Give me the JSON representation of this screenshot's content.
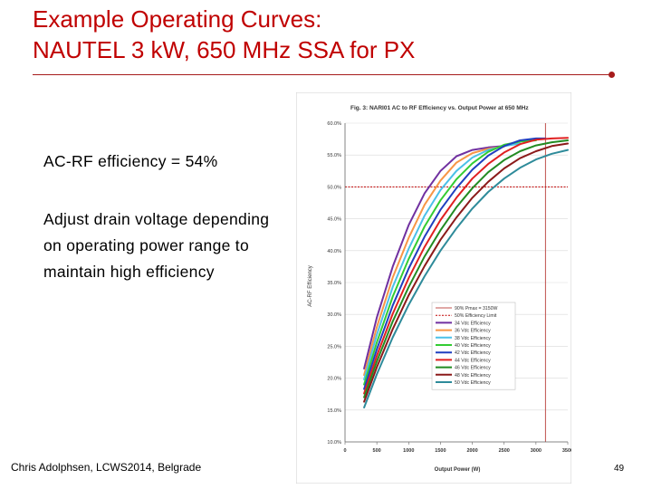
{
  "slide": {
    "title_line1": "Example Operating Curves:",
    "title_line2": "NAUTEL 3 kW, 650 MHz SSA for PX",
    "bullet1": "AC-RF efficiency = 54%",
    "bullet2": "Adjust drain voltage depending on operating power range to maintain high efficiency",
    "footer": "Chris Adolphsen, LCWS2014, Belgrade",
    "page_number": "49"
  },
  "chart_data": {
    "type": "line",
    "title": "Fig. 3: NARI01 AC to RF Efficiency vs. Output Power at 650 MHz",
    "xlabel": "Output Power (W)",
    "ylabel": "AC-RF Efficiency",
    "xlim": [
      0,
      3500
    ],
    "ylim": [
      10,
      60
    ],
    "x_ticks": [
      "0",
      "500",
      "1000",
      "1500",
      "2000",
      "2500",
      "3000",
      "3500"
    ],
    "y_ticks": [
      "10.0%",
      "15.0%",
      "20.0%",
      "25.0%",
      "30.0%",
      "35.0%",
      "40.0%",
      "45.0%",
      "50.0%",
      "55.0%",
      "60.0%"
    ],
    "legend_position": "bottom-right",
    "reference_lines": [
      {
        "name": "90% Pmax = 3150W",
        "orientation": "vertical",
        "value": 3150,
        "color": "#c0504d"
      },
      {
        "name": "50% Efficiency Limit",
        "orientation": "horizontal",
        "value": 50,
        "color": "#c00000"
      }
    ],
    "series": [
      {
        "name": "34 Vdc Efficiency",
        "color": "#7030a0",
        "x": [
          300,
          500,
          750,
          1000,
          1250,
          1500,
          1750,
          2000,
          2250,
          2500
        ],
        "y": [
          21.5,
          29.5,
          37.5,
          44,
          49,
          52.5,
          54.8,
          55.8,
          56.2,
          56.4
        ]
      },
      {
        "name": "36 Vdc Efficiency",
        "color": "#f79646",
        "x": [
          300,
          500,
          750,
          1000,
          1250,
          1500,
          1750,
          2000,
          2250,
          2500
        ],
        "y": [
          20.5,
          28,
          35.8,
          42,
          47.2,
          51,
          53.8,
          55.3,
          56,
          56.3
        ]
      },
      {
        "name": "38 Vdc Efficiency",
        "color": "#4bc0e8",
        "x": [
          300,
          500,
          750,
          1000,
          1250,
          1500,
          1750,
          2000,
          2250,
          2500,
          2750
        ],
        "y": [
          19.8,
          26.8,
          34.3,
          40.3,
          45.5,
          49.5,
          52.5,
          54.6,
          55.8,
          56.4,
          56.8
        ]
      },
      {
        "name": "40 Vdc Efficiency",
        "color": "#33cc33",
        "x": [
          300,
          500,
          750,
          1000,
          1250,
          1500,
          1750,
          2000,
          2250,
          2500,
          2750,
          3000
        ],
        "y": [
          19,
          25.6,
          32.8,
          38.7,
          43.8,
          47.9,
          51.2,
          53.7,
          55.5,
          56.6,
          57.1,
          57.3
        ]
      },
      {
        "name": "42 Vdc Efficiency",
        "color": "#1f3fbf",
        "x": [
          300,
          500,
          750,
          1000,
          1250,
          1500,
          1750,
          2000,
          2250,
          2500,
          2750,
          3000,
          3150
        ],
        "y": [
          18.3,
          24.5,
          31.4,
          37.2,
          42.2,
          46.4,
          49.8,
          52.7,
          54.9,
          56.4,
          57.3,
          57.6,
          57.6
        ]
      },
      {
        "name": "44 Vdc Efficiency",
        "color": "#e02020",
        "x": [
          300,
          500,
          750,
          1000,
          1250,
          1500,
          1750,
          2000,
          2250,
          2500,
          2750,
          3000,
          3250,
          3500
        ],
        "y": [
          17.6,
          23.5,
          30.1,
          35.7,
          40.6,
          44.8,
          48.3,
          51.3,
          53.6,
          55.4,
          56.7,
          57.4,
          57.6,
          57.7
        ]
      },
      {
        "name": "46 Vdc Efficiency",
        "color": "#228b22",
        "x": [
          300,
          500,
          750,
          1000,
          1250,
          1500,
          1750,
          2000,
          2250,
          2500,
          2750,
          3000,
          3250,
          3500
        ],
        "y": [
          17,
          22.6,
          28.9,
          34.3,
          39.1,
          43.2,
          46.8,
          49.8,
          52.3,
          54.2,
          55.6,
          56.5,
          57,
          57.3
        ]
      },
      {
        "name": "48 Vdc Efficiency",
        "color": "#8b1a1a",
        "x": [
          300,
          500,
          750,
          1000,
          1250,
          1500,
          1750,
          2000,
          2250,
          2500,
          2750,
          3000,
          3250,
          3500
        ],
        "y": [
          16.3,
          21.7,
          27.7,
          33,
          37.6,
          41.7,
          45.2,
          48.3,
          50.8,
          52.9,
          54.5,
          55.6,
          56.4,
          56.8
        ]
      },
      {
        "name": "50 Vdc Efficiency",
        "color": "#2e8b9a",
        "x": [
          300,
          500,
          750,
          1000,
          1250,
          1500,
          1750,
          2000,
          2250,
          2500,
          2750,
          3000,
          3250,
          3500
        ],
        "y": [
          15.4,
          20.6,
          26.4,
          31.5,
          36,
          40,
          43.5,
          46.6,
          49.2,
          51.3,
          53,
          54.3,
          55.2,
          55.8
        ]
      }
    ]
  }
}
